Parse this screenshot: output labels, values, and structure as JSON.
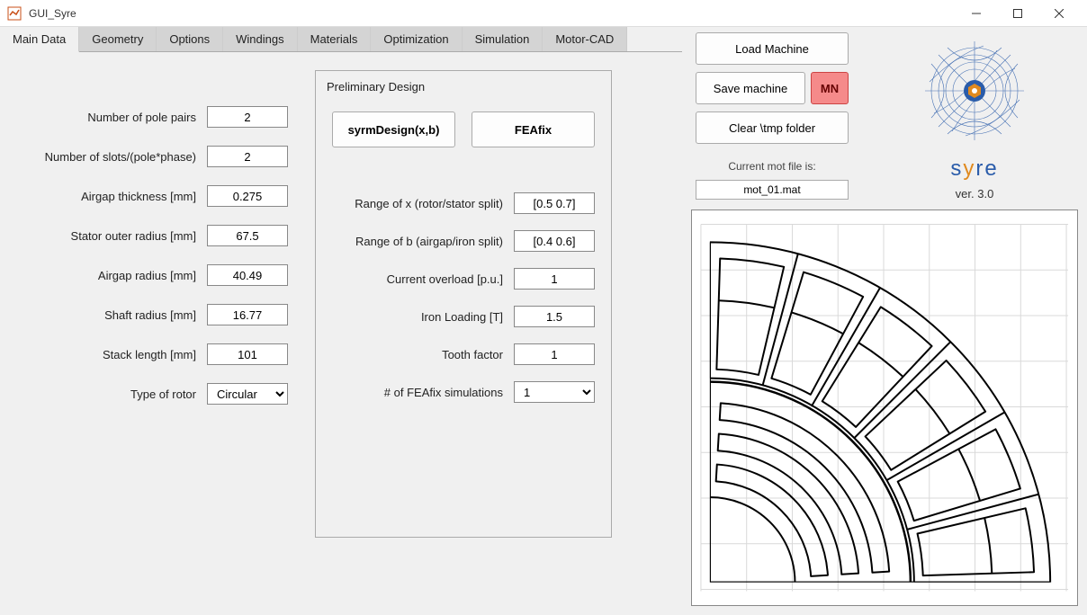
{
  "window": {
    "title": "GUI_Syre"
  },
  "tabs": [
    "Main Data",
    "Geometry",
    "Options",
    "Windings",
    "Materials",
    "Optimization",
    "Simulation",
    "Motor-CAD"
  ],
  "activeTab": 0,
  "mainData": {
    "fields": [
      {
        "label": "Number of pole pairs",
        "value": "2"
      },
      {
        "label": "Number of slots/(pole*phase)",
        "value": "2"
      },
      {
        "label": "Airgap thickness [mm]",
        "value": "0.275"
      },
      {
        "label": "Stator outer radius [mm]",
        "value": "67.5"
      },
      {
        "label": "Airgap radius [mm]",
        "value": "40.49"
      },
      {
        "label": "Shaft radius [mm]",
        "value": "16.77"
      },
      {
        "label": "Stack length [mm]",
        "value": "101"
      }
    ],
    "rotorTypeLabel": "Type of rotor",
    "rotorType": "Circular"
  },
  "prelim": {
    "title": "Preliminary Design",
    "btn1": "syrmDesign(x,b)",
    "btn2": "FEAfix",
    "fields": [
      {
        "label": "Range of x (rotor/stator split)",
        "value": "[0.5 0.7]"
      },
      {
        "label": "Range of b (airgap/iron split)",
        "value": "[0.4 0.6]"
      },
      {
        "label": "Current overload [p.u.]",
        "value": "1"
      },
      {
        "label": "Iron Loading [T]",
        "value": "1.5"
      },
      {
        "label": "Tooth factor",
        "value": "1"
      }
    ],
    "feafixLabel": "# of FEAfix simulations",
    "feafixValue": "1"
  },
  "rightPanel": {
    "loadBtn": "Load Machine",
    "saveBtn": "Save machine",
    "mnBtn": "MN",
    "clearBtn": "Clear \\tmp folder",
    "curFileLabel": "Current mot file is:",
    "curFile": "mot_01.mat",
    "logoText1": "s",
    "logoText2": "y",
    "logoText3": "re",
    "version": "ver. 3.0"
  },
  "figure": {
    "background": "#ffffff",
    "grid_color": "#d9d9d9",
    "stroke": "#000000",
    "stroke_width": 2,
    "stator_outer_r": 200,
    "airgap_r": 120,
    "shaft_r": 50,
    "slots": 6,
    "barriers": 3
  }
}
